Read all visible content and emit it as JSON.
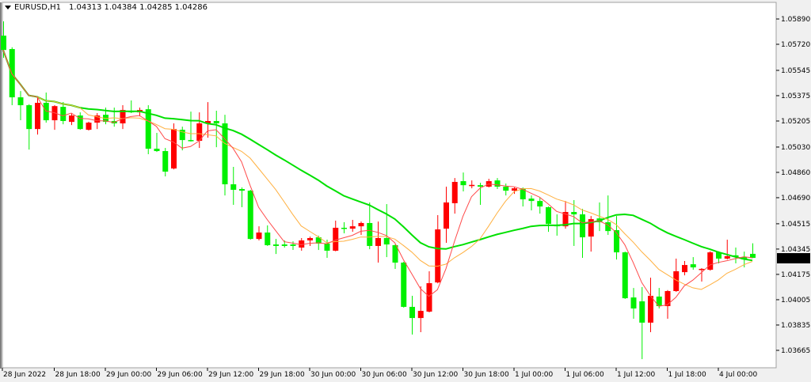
{
  "header": {
    "symbol_timeframe": "EURUSD,H1",
    "ohlc_text": "1.04313 1.04384 1.04285 1.04286",
    "menu_icon": "triangle-down-icon"
  },
  "colors": {
    "bull_candle": "#ff0000",
    "bear_candle": "#00f000",
    "ma_fast": "#ff4a4a",
    "ma_mid": "#ffb040",
    "ma_slow": "#00e000",
    "price_tag_bg": "#000000",
    "price_tag_text": "#ffffff"
  },
  "chart_data": {
    "type": "candlestick",
    "symbol": "EURUSD",
    "timeframe": "H1",
    "current_price": "1.04286",
    "ylim": [
      1.0358,
      1.06
    ],
    "y_ticks": [
      "1.05890",
      "1.05720",
      "1.05545",
      "1.05375",
      "1.05205",
      "1.05030",
      "1.04860",
      "1.04690",
      "1.04515",
      "1.04345",
      "1.04175",
      "1.04005",
      "1.03835",
      "1.03665"
    ],
    "x_ticks": [
      "28 Jun 2022",
      "28 Jun 18:00",
      "29 Jun 00:00",
      "29 Jun 06:00",
      "29 Jun 12:00",
      "29 Jun 18:00",
      "30 Jun 00:00",
      "30 Jun 06:00",
      "30 Jun 12:00",
      "30 Jun 18:00",
      "1 Jul 00:00",
      "1 Jul 06:00",
      "1 Jul 12:00",
      "1 Jul 18:00",
      "4 Jul 00:00"
    ],
    "candle_fields": [
      "open",
      "high",
      "low",
      "close"
    ],
    "candles": [
      [
        1.05778,
        1.05874,
        1.05629,
        1.05682
      ],
      [
        1.05688,
        1.057,
        1.05311,
        1.05364
      ],
      [
        1.05364,
        1.05406,
        1.0521,
        1.05311
      ],
      [
        1.05311,
        1.05318,
        1.05013,
        1.05151
      ],
      [
        1.05151,
        1.05369,
        1.05114,
        1.05327
      ],
      [
        1.05327,
        1.05396,
        1.05194,
        1.0521
      ],
      [
        1.0521,
        1.05311,
        1.05146,
        1.05305
      ],
      [
        1.053,
        1.05332,
        1.05183,
        1.05205
      ],
      [
        1.05199,
        1.05258,
        1.05178,
        1.05242
      ],
      [
        1.05242,
        1.05263,
        1.05146,
        1.05151
      ],
      [
        1.05146,
        1.052,
        1.05141,
        1.05194
      ],
      [
        1.05194,
        1.05258,
        1.05151,
        1.05242
      ],
      [
        1.05247,
        1.05295,
        1.05183,
        1.05199
      ],
      [
        1.05205,
        1.05295,
        1.05167,
        1.05189
      ],
      [
        1.05189,
        1.05311,
        1.05151,
        1.05279
      ],
      [
        1.05274,
        1.05343,
        1.05258,
        1.05263
      ],
      [
        1.05263,
        1.05295,
        1.05236,
        1.05279
      ],
      [
        1.05284,
        1.05311,
        1.04982,
        1.05019
      ],
      [
        1.05019,
        1.05125,
        1.04997,
        1.05003
      ],
      [
        1.05003,
        1.05024,
        1.04833,
        1.04865
      ],
      [
        1.04886,
        1.05189,
        1.0488,
        1.05151
      ],
      [
        1.05146,
        1.05167,
        1.05008,
        1.05077
      ],
      [
        1.05077,
        1.05268,
        1.05067,
        1.05072
      ],
      [
        1.05072,
        1.05263,
        1.05024,
        1.05189
      ],
      [
        1.05189,
        1.05332,
        1.05093,
        1.05205
      ],
      [
        1.05205,
        1.05274,
        1.05029,
        1.05189
      ],
      [
        1.05189,
        1.05247,
        1.04705,
        1.0478
      ],
      [
        1.0478,
        1.04897,
        1.04642,
        1.04743
      ],
      [
        1.04748,
        1.04759,
        1.04626,
        1.04737
      ],
      [
        1.04737,
        1.04743,
        1.04408,
        1.04413
      ],
      [
        1.04413,
        1.04498,
        1.04403,
        1.04456
      ],
      [
        1.04456,
        1.04504,
        1.04366,
        1.04371
      ],
      [
        1.04376,
        1.04413,
        1.04312,
        1.04366
      ],
      [
        1.04376,
        1.04403,
        1.04355,
        1.04366
      ],
      [
        1.04376,
        1.04397,
        1.04339,
        1.04366
      ],
      [
        1.04355,
        1.04419,
        1.04334,
        1.04403
      ],
      [
        1.04403,
        1.04429,
        1.04366,
        1.04419
      ],
      [
        1.04424,
        1.04435,
        1.04339,
        1.04382
      ],
      [
        1.04382,
        1.04408,
        1.04286,
        1.04334
      ],
      [
        1.04334,
        1.04536,
        1.0433,
        1.04488
      ],
      [
        1.04488,
        1.04525,
        1.04451,
        1.04482
      ],
      [
        1.04482,
        1.04541,
        1.04461,
        1.04498
      ],
      [
        1.04498,
        1.0453,
        1.0444,
        1.0452
      ],
      [
        1.0452,
        1.04658,
        1.04344,
        1.04366
      ],
      [
        1.04366,
        1.0453,
        1.04254,
        1.04419
      ],
      [
        1.04419,
        1.04647,
        1.04291,
        1.04376
      ],
      [
        1.04371,
        1.04376,
        1.04212,
        1.04254
      ],
      [
        1.04254,
        1.0426,
        1.03952,
        1.03957
      ],
      [
        1.03957,
        1.04031,
        1.03771,
        1.03882
      ],
      [
        1.03882,
        1.04095,
        1.03787,
        1.0393
      ],
      [
        1.03925,
        1.04196,
        1.0392,
        1.04116
      ],
      [
        1.04121,
        1.04573,
        1.04115,
        1.04477
      ],
      [
        1.04482,
        1.04764,
        1.04387,
        1.04658
      ],
      [
        1.04653,
        1.04822,
        1.04583,
        1.04796
      ],
      [
        1.04801,
        1.04859,
        1.04732,
        1.04774
      ],
      [
        1.04772,
        1.04806,
        1.04753,
        1.04776
      ],
      [
        1.04774,
        1.0479,
        1.04642,
        1.04764
      ],
      [
        1.04764,
        1.04817,
        1.04759,
        1.04801
      ],
      [
        1.04806,
        1.04822,
        1.04748,
        1.04764
      ],
      [
        1.04764,
        1.04785,
        1.04705,
        1.04737
      ],
      [
        1.04737,
        1.04759,
        1.04716,
        1.04753
      ],
      [
        1.04753,
        1.04759,
        1.04631,
        1.04679
      ],
      [
        1.04684,
        1.04705,
        1.04605,
        1.04668
      ],
      [
        1.04668,
        1.04689,
        1.04583,
        1.04631
      ],
      [
        1.04626,
        1.04631,
        1.04461,
        1.04514
      ],
      [
        1.04509,
        1.04578,
        1.04435,
        1.04498
      ],
      [
        1.04498,
        1.04668,
        1.04482,
        1.04594
      ],
      [
        1.04594,
        1.04674,
        1.04366,
        1.04578
      ],
      [
        1.04578,
        1.04615,
        1.04286,
        1.04424
      ],
      [
        1.04429,
        1.04567,
        1.04328,
        1.04546
      ],
      [
        1.04551,
        1.04658,
        1.04466,
        1.04525
      ],
      [
        1.04525,
        1.04705,
        1.0444,
        1.04466
      ],
      [
        1.04472,
        1.04567,
        1.04275,
        1.04323
      ],
      [
        1.04323,
        1.04328,
        1.0401,
        1.04015
      ],
      [
        1.0402,
        1.04084,
        1.03877,
        1.03946
      ],
      [
        1.03994,
        1.0409,
        1.03606,
        1.03851
      ],
      [
        1.03851,
        1.04153,
        1.03787,
        1.04031
      ],
      [
        1.04026,
        1.04084,
        1.03946,
        1.03962
      ],
      [
        1.03962,
        1.0407,
        1.03877,
        1.04063
      ],
      [
        1.04063,
        1.04281,
        1.04058,
        1.04196
      ],
      [
        1.0419,
        1.04265,
        1.04169,
        1.04238
      ],
      [
        1.04243,
        1.04291,
        1.04206,
        1.04222
      ],
      [
        1.04206,
        1.04217,
        1.04127,
        1.04212
      ],
      [
        1.04206,
        1.0433,
        1.042,
        1.04323
      ],
      [
        1.04323,
        1.0433,
        1.04249,
        1.04281
      ],
      [
        1.04281,
        1.04408,
        1.04275,
        1.04297
      ],
      [
        1.04303,
        1.04355,
        1.04249,
        1.04291
      ],
      [
        1.04291,
        1.04328,
        1.04222,
        1.04275
      ],
      [
        1.04313,
        1.04384,
        1.04285,
        1.04286
      ]
    ],
    "moving_averages": [
      "fast",
      "mid",
      "slow"
    ],
    "grid": false
  }
}
